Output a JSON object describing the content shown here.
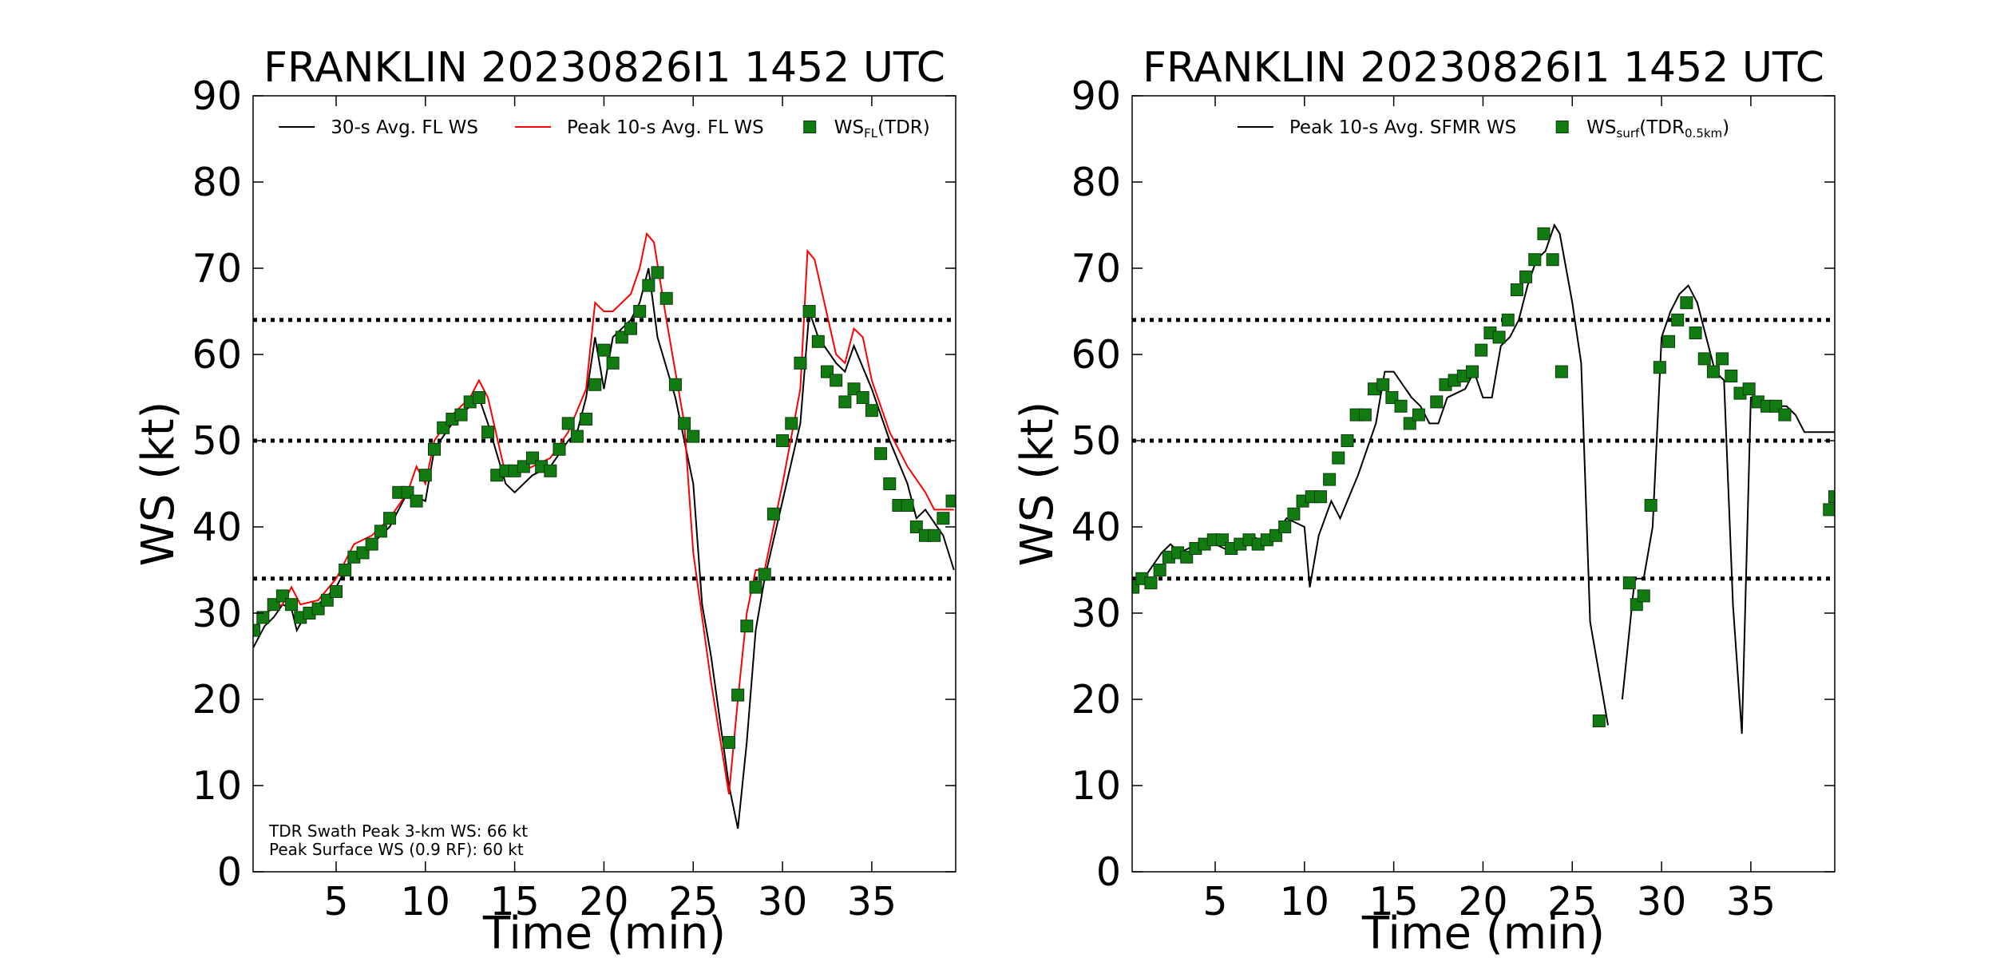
{
  "chart_data": [
    {
      "type": "line",
      "title": "FRANKLIN 20230826I1 1452 UTC",
      "xlabel": "Time (min)",
      "ylabel": "WS (kt)",
      "xlim": [
        0.35,
        39.7
      ],
      "ylim": [
        0,
        90
      ],
      "xticks": [
        5,
        10,
        15,
        20,
        25,
        30,
        35
      ],
      "yticks": [
        0,
        10,
        20,
        30,
        40,
        50,
        60,
        70,
        80,
        90
      ],
      "grid": false,
      "legend": "upper center",
      "hlines": [
        34,
        50,
        64
      ],
      "hline_color": "#000000",
      "annotations": [
        "TDR Swath Peak 3-km WS: 66 kt",
        "Peak Surface WS (0.9 RF): 60 kt"
      ],
      "series": [
        {
          "name": "30-s Avg. FL WS",
          "kind": "line",
          "color": "#000000",
          "x": [
            0.36,
            1,
            1.5,
            2,
            2.5,
            2.8,
            3.2,
            4,
            5,
            6,
            7,
            8,
            9,
            10,
            10.5,
            11.5,
            12.5,
            13,
            13.5,
            14.5,
            15,
            16,
            17,
            18,
            18.5,
            19,
            19.5,
            20,
            20.5,
            21.5,
            22,
            22.5,
            23,
            24,
            25,
            25.5,
            26,
            27,
            27.5,
            28,
            28.5,
            29,
            30,
            31,
            31.5,
            32,
            33,
            33.5,
            34,
            35,
            36,
            37,
            37.5,
            38,
            39,
            39.6
          ],
          "values": [
            26,
            28.5,
            29.5,
            31,
            30.5,
            28,
            29.5,
            31,
            33,
            37,
            38,
            40,
            44,
            43,
            49,
            52,
            54,
            55,
            52,
            45,
            44,
            46,
            47,
            50,
            51,
            55,
            62,
            56,
            62,
            64,
            66,
            70,
            62,
            55,
            45,
            31,
            25,
            10,
            5,
            15,
            28,
            34,
            43,
            52,
            65,
            62,
            59,
            58,
            61,
            56,
            50,
            45,
            41,
            42,
            39,
            35
          ]
        },
        {
          "name": "Peak 10-s Avg. FL WS",
          "kind": "line",
          "color": "#ff0000",
          "x": [
            0.36,
            1,
            2,
            2.5,
            3,
            4,
            5,
            6,
            7,
            8,
            9,
            9.5,
            10,
            10.5,
            11.5,
            12.5,
            13,
            13.5,
            14.5,
            15,
            16,
            17,
            18,
            19,
            19.5,
            20,
            20.5,
            21.5,
            22,
            22.4,
            22.8,
            23.5,
            24.5,
            25,
            26,
            27,
            27.5,
            28,
            28.5,
            29,
            30,
            31,
            31.4,
            31.8,
            33,
            33.5,
            34,
            34.5,
            35,
            36,
            37,
            38,
            38.5,
            39.6
          ],
          "values": [
            28,
            30,
            31,
            33,
            31,
            31.5,
            34,
            38,
            39,
            41,
            44,
            47,
            45,
            50,
            53,
            55,
            57,
            55,
            46,
            46,
            47,
            48,
            51,
            56,
            66,
            65,
            65,
            67,
            70,
            74,
            73,
            64,
            52,
            37,
            22,
            9,
            20,
            30,
            35,
            35,
            45,
            56,
            72,
            71,
            60,
            59,
            63,
            62,
            57,
            51,
            47,
            44,
            42,
            42
          ]
        },
        {
          "name": [
            "WS",
            "FL",
            "(TDR)"
          ],
          "kind": "marker",
          "color": "#117a11",
          "x": [
            0.4,
            0.9,
            1.5,
            2,
            2.5,
            3,
            3.5,
            4,
            4.5,
            5,
            5.5,
            6,
            6.5,
            7,
            7.5,
            8,
            8.5,
            9,
            9.5,
            10,
            10.5,
            11,
            11.5,
            12,
            12.5,
            13,
            13.5,
            14,
            14.5,
            15,
            15.5,
            16,
            16.5,
            17,
            17.5,
            18,
            18.5,
            19,
            19.5,
            20,
            20.5,
            21,
            21.5,
            22,
            22.5,
            23,
            23.5,
            24,
            24.5,
            25,
            27,
            27.5,
            28,
            28.5,
            29,
            29.5,
            30,
            30.5,
            31,
            31.5,
            32,
            32.5,
            33,
            33.5,
            34,
            34.5,
            35,
            35.5,
            36,
            36.5,
            37,
            37.5,
            38,
            38.5,
            39,
            39.5
          ],
          "values": [
            28,
            29.5,
            31,
            32,
            31,
            29.5,
            30,
            30.5,
            31.5,
            32.5,
            35,
            36.5,
            37,
            38,
            39.5,
            41,
            44,
            44,
            43,
            46,
            49,
            51.5,
            52.5,
            53,
            54.5,
            55,
            51,
            46,
            46.5,
            46.5,
            47,
            48,
            47,
            46.5,
            49,
            52,
            50.5,
            52.5,
            56.5,
            60.5,
            59,
            62,
            63,
            65,
            68,
            69.5,
            66.5,
            56.5,
            52,
            50.5,
            15,
            20.5,
            28.5,
            33,
            34.5,
            41.5,
            50,
            52,
            59,
            65,
            61.5,
            58,
            57,
            54.5,
            56,
            55,
            53.5,
            48.5,
            45,
            42.5,
            42.5,
            40,
            39,
            39,
            41,
            43
          ]
        }
      ]
    },
    {
      "type": "line",
      "title": "FRANKLIN 20230826I1 1452 UTC",
      "xlabel": "Time (min)",
      "ylabel": "WS (kt)",
      "xlim": [
        0.35,
        39.7
      ],
      "ylim": [
        0,
        90
      ],
      "xticks": [
        5,
        10,
        15,
        20,
        25,
        30,
        35
      ],
      "yticks": [
        0,
        10,
        20,
        30,
        40,
        50,
        60,
        70,
        80,
        90
      ],
      "grid": false,
      "legend": "upper center",
      "hlines": [
        34,
        50,
        64
      ],
      "hline_color": "#000000",
      "series": [
        {
          "name": "Peak 10-s Avg. SFMR WS",
          "kind": "line",
          "color": "#000000",
          "x": [
            0.36,
            1,
            2,
            2.5,
            3,
            4,
            5,
            6,
            7,
            8,
            9,
            10,
            10.3,
            10.8,
            11.5,
            12,
            13,
            14,
            14.5,
            15,
            16,
            16.5,
            17,
            17.5,
            18,
            19,
            19.5,
            20,
            20.5,
            21,
            21.5,
            22,
            22.5,
            23,
            23.5,
            24,
            24.3,
            25,
            25.5,
            26,
            27,
            27.4,
            27.8,
            28.5,
            29,
            29.5,
            30,
            30.5,
            31,
            31.5,
            32,
            33,
            33.5,
            34,
            34.5,
            35,
            35.5,
            36,
            37,
            37.5,
            38,
            39.7
          ],
          "values": [
            33,
            34,
            37,
            38,
            37,
            38,
            38,
            37,
            39,
            38,
            41,
            40,
            33,
            39,
            43,
            41,
            46,
            52,
            58,
            58,
            55,
            54,
            52,
            52,
            55,
            56,
            58,
            55,
            55,
            61,
            62,
            64,
            68,
            71,
            72,
            75,
            74,
            66,
            59,
            29,
            17,
            null,
            20,
            34,
            34,
            40,
            62,
            65,
            67,
            68,
            66,
            58,
            57,
            31,
            16,
            55,
            55,
            54,
            54,
            53,
            51,
            51
          ]
        },
        {
          "name": [
            "WS",
            "surf",
            "(TDR",
            "0.5km",
            ")"
          ],
          "kind": "marker",
          "color": "#117a11",
          "x": [
            0.4,
            0.9,
            1.4,
            1.9,
            2.4,
            2.9,
            3.4,
            3.9,
            4.4,
            4.9,
            5.4,
            5.9,
            6.4,
            6.9,
            7.4,
            7.9,
            8.4,
            8.9,
            9.4,
            9.9,
            10.4,
            10.9,
            11.4,
            11.9,
            12.4,
            12.9,
            13.4,
            13.9,
            14.4,
            14.9,
            15.4,
            15.9,
            16.4,
            17.4,
            17.9,
            18.4,
            18.9,
            19.4,
            19.9,
            20.4,
            20.9,
            21.4,
            21.9,
            22.4,
            22.9,
            23.4,
            23.9,
            24.4,
            26.5,
            28.2,
            28.6,
            29,
            29.4,
            29.9,
            30.4,
            30.9,
            31.4,
            31.9,
            32.4,
            32.9,
            33.4,
            33.9,
            34.4,
            34.9,
            35.4,
            35.9,
            36.4,
            36.9,
            39.4,
            39.7
          ],
          "values": [
            33,
            34,
            33.5,
            35,
            36.5,
            37,
            36.5,
            37.5,
            38,
            38.5,
            38.5,
            37.5,
            38,
            38.5,
            38,
            38.5,
            39,
            40,
            41.5,
            43,
            43.5,
            43.5,
            45.5,
            48,
            50,
            53,
            53,
            56,
            56.5,
            55,
            54,
            52,
            53,
            54.5,
            56.5,
            57,
            57.5,
            58,
            60.5,
            62.5,
            62,
            64,
            67.5,
            69,
            71,
            74,
            71,
            58,
            17.5,
            33.5,
            31,
            32,
            42.5,
            58.5,
            61.5,
            64,
            66,
            62.5,
            59.5,
            58,
            59.5,
            57.5,
            55.5,
            56,
            54.5,
            54,
            54,
            53,
            42,
            43.5
          ]
        }
      ]
    }
  ]
}
